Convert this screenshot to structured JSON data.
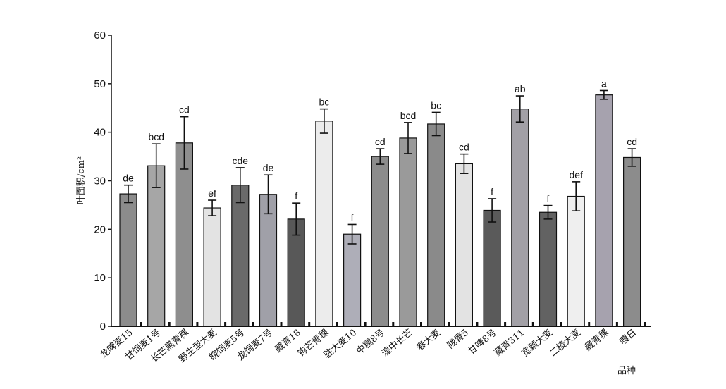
{
  "chart_data": {
    "type": "bar",
    "ylabel": "叶面积/cm²",
    "xlabel": "品种",
    "ylim": [
      0,
      60
    ],
    "yticks": [
      0,
      10,
      20,
      30,
      40,
      50,
      60
    ],
    "grid": false,
    "categories": [
      "龙啤麦15",
      "甘饲麦1号",
      "长芒黑青稞",
      "野生型大麦",
      "皖饲麦5号",
      "龙饲麦7号",
      "藏青18",
      "钩芒青稞",
      "驻大麦10",
      "中糯8号",
      "湟中长芒",
      "春大麦",
      "陇青5",
      "甘啤8号",
      "藏青311",
      "宽颖大麦",
      "二棱大麦",
      "藏青稞",
      "嘎日"
    ],
    "values": [
      27.3,
      33.1,
      37.8,
      24.4,
      29.1,
      27.2,
      22.1,
      42.3,
      19.0,
      35.0,
      38.8,
      41.7,
      33.5,
      23.9,
      44.8,
      23.5,
      26.8,
      47.7,
      34.8
    ],
    "errors": [
      1.8,
      4.5,
      5.4,
      1.6,
      3.6,
      4.0,
      3.3,
      2.5,
      2.0,
      1.6,
      3.2,
      2.4,
      2.0,
      2.4,
      2.7,
      1.4,
      3.0,
      0.9,
      1.8
    ],
    "letters": [
      "de",
      "bcd",
      "cd",
      "ef",
      "cde",
      "de",
      "f",
      "bc",
      "f",
      "cd",
      "bcd",
      "bc",
      "cd",
      "f",
      "ab",
      "f",
      "def",
      "a",
      "cd"
    ],
    "colors": [
      "#8c8c8c",
      "#a6a6a6",
      "#8e8e8e",
      "#e3e3e3",
      "#6a6a6a",
      "#a0a0a8",
      "#585858",
      "#ececec",
      "#aeaeb8",
      "#8c8c8c",
      "#9a9a9a",
      "#8a8a8a",
      "#e3e3e3",
      "#5a5a5a",
      "#a2a0a6",
      "#626262",
      "#efefef",
      "#a6a2ae",
      "#8c8c8c"
    ]
  }
}
